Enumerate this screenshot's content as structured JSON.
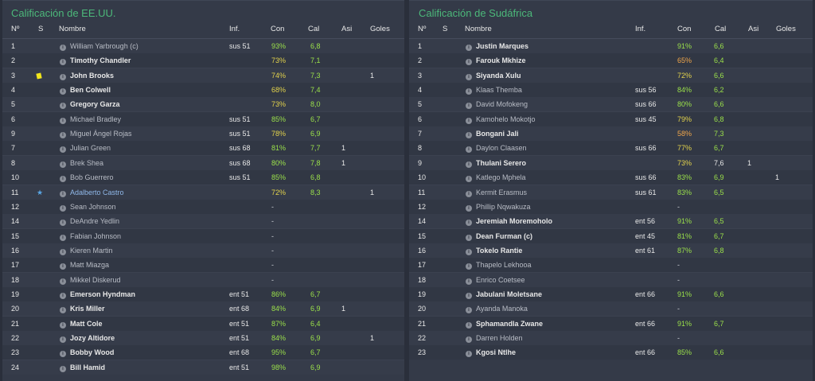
{
  "left": {
    "title": "Calificación de EE.UU.",
    "headers": {
      "num": "Nº",
      "s": "S",
      "name": "Nombre",
      "inf": "Inf.",
      "con": "Con",
      "cal": "Cal",
      "asi": "Asi",
      "goles": "Goles"
    },
    "rows": [
      {
        "num": "1",
        "s": "",
        "name": "William Yarbrough (c)",
        "bold": false,
        "inf": "sus 51",
        "con": "93%",
        "conc": "good",
        "cal": "6,8",
        "asi": "",
        "goles": ""
      },
      {
        "num": "2",
        "s": "",
        "name": "Timothy Chandler",
        "bold": true,
        "inf": "",
        "con": "73%",
        "conc": "mid",
        "cal": "7,1",
        "asi": "",
        "goles": ""
      },
      {
        "num": "3",
        "s": "yellow-card",
        "name": "John Brooks",
        "bold": true,
        "inf": "",
        "con": "74%",
        "conc": "mid",
        "cal": "7,3",
        "asi": "",
        "goles": "1"
      },
      {
        "num": "4",
        "s": "",
        "name": "Ben Colwell",
        "bold": true,
        "inf": "",
        "con": "68%",
        "conc": "mid",
        "cal": "7,4",
        "asi": "",
        "goles": ""
      },
      {
        "num": "5",
        "s": "",
        "name": "Gregory Garza",
        "bold": true,
        "inf": "",
        "con": "73%",
        "conc": "mid",
        "cal": "8,0",
        "asi": "",
        "goles": ""
      },
      {
        "num": "6",
        "s": "",
        "name": "Michael Bradley",
        "bold": false,
        "inf": "sus 51",
        "con": "85%",
        "conc": "good",
        "cal": "6,7",
        "asi": "",
        "goles": ""
      },
      {
        "num": "9",
        "s": "",
        "name": "Miguel Ángel Rojas",
        "bold": false,
        "inf": "sus 51",
        "con": "78%",
        "conc": "mid",
        "cal": "6,9",
        "asi": "",
        "goles": ""
      },
      {
        "num": "7",
        "s": "",
        "name": "Julian Green",
        "bold": false,
        "inf": "sus 68",
        "con": "81%",
        "conc": "good",
        "cal": "7,7",
        "asi": "1",
        "goles": ""
      },
      {
        "num": "8",
        "s": "",
        "name": "Brek Shea",
        "bold": false,
        "inf": "sus 68",
        "con": "80%",
        "conc": "good",
        "cal": "7,8",
        "asi": "1",
        "goles": ""
      },
      {
        "num": "10",
        "s": "",
        "name": "Bob Guerrero",
        "bold": false,
        "inf": "sus 51",
        "con": "85%",
        "conc": "good",
        "cal": "6,8",
        "asi": "",
        "goles": ""
      },
      {
        "num": "11",
        "s": "star",
        "name": "Adalberto Castro",
        "bold": false,
        "starname": true,
        "inf": "",
        "con": "72%",
        "conc": "mid",
        "cal": "8,3",
        "asi": "",
        "goles": "1"
      },
      {
        "num": "12",
        "s": "",
        "name": "Sean Johnson",
        "bold": false,
        "inf": "",
        "con": "-",
        "conc": "none",
        "cal": "",
        "asi": "",
        "goles": ""
      },
      {
        "num": "14",
        "s": "",
        "name": "DeAndre Yedlin",
        "bold": false,
        "inf": "",
        "con": "-",
        "conc": "none",
        "cal": "",
        "asi": "",
        "goles": ""
      },
      {
        "num": "15",
        "s": "",
        "name": "Fabian Johnson",
        "bold": false,
        "inf": "",
        "con": "-",
        "conc": "none",
        "cal": "",
        "asi": "",
        "goles": ""
      },
      {
        "num": "16",
        "s": "",
        "name": "Kieren Martin",
        "bold": false,
        "inf": "",
        "con": "-",
        "conc": "none",
        "cal": "",
        "asi": "",
        "goles": ""
      },
      {
        "num": "17",
        "s": "",
        "name": "Matt Miazga",
        "bold": false,
        "inf": "",
        "con": "-",
        "conc": "none",
        "cal": "",
        "asi": "",
        "goles": ""
      },
      {
        "num": "18",
        "s": "",
        "name": "Mikkel Diskerud",
        "bold": false,
        "inf": "",
        "con": "-",
        "conc": "none",
        "cal": "",
        "asi": "",
        "goles": ""
      },
      {
        "num": "19",
        "s": "",
        "name": "Emerson Hyndman",
        "bold": true,
        "inf": "ent 51",
        "con": "86%",
        "conc": "good",
        "cal": "6,7",
        "asi": "",
        "goles": ""
      },
      {
        "num": "20",
        "s": "",
        "name": "Kris Miller",
        "bold": true,
        "inf": "ent 68",
        "con": "84%",
        "conc": "good",
        "cal": "6,9",
        "asi": "1",
        "goles": ""
      },
      {
        "num": "21",
        "s": "",
        "name": "Matt Cole",
        "bold": true,
        "inf": "ent 51",
        "con": "87%",
        "conc": "good",
        "cal": "6,4",
        "asi": "",
        "goles": ""
      },
      {
        "num": "22",
        "s": "",
        "name": "Jozy Altidore",
        "bold": true,
        "inf": "ent 51",
        "con": "84%",
        "conc": "good",
        "cal": "6,9",
        "asi": "",
        "goles": "1"
      },
      {
        "num": "23",
        "s": "",
        "name": "Bobby Wood",
        "bold": true,
        "inf": "ent 68",
        "con": "95%",
        "conc": "good",
        "cal": "6,7",
        "asi": "",
        "goles": ""
      },
      {
        "num": "24",
        "s": "",
        "name": "Bill Hamid",
        "bold": true,
        "inf": "ent 51",
        "con": "98%",
        "conc": "good",
        "cal": "6,9",
        "asi": "",
        "goles": ""
      }
    ]
  },
  "right": {
    "title": "Calificación de Sudáfrica",
    "headers": {
      "num": "Nº",
      "s": "S",
      "name": "Nombre",
      "inf": "Inf.",
      "con": "Con",
      "cal": "Cal",
      "asi": "Asi",
      "goles": "Goles"
    },
    "rows": [
      {
        "num": "1",
        "s": "",
        "name": "Justin Marques",
        "bold": true,
        "inf": "",
        "con": "91%",
        "conc": "good",
        "cal": "6,6",
        "asi": "",
        "goles": ""
      },
      {
        "num": "2",
        "s": "",
        "name": "Farouk Mkhize",
        "bold": true,
        "inf": "",
        "con": "65%",
        "conc": "low",
        "cal": "6,4",
        "asi": "",
        "goles": ""
      },
      {
        "num": "3",
        "s": "",
        "name": "Siyanda Xulu",
        "bold": true,
        "inf": "",
        "con": "72%",
        "conc": "mid",
        "cal": "6,6",
        "asi": "",
        "goles": ""
      },
      {
        "num": "4",
        "s": "",
        "name": "Klaas Themba",
        "bold": false,
        "inf": "sus 56",
        "con": "84%",
        "conc": "good",
        "cal": "6,2",
        "asi": "",
        "goles": ""
      },
      {
        "num": "5",
        "s": "",
        "name": "David Mofokeng",
        "bold": false,
        "inf": "sus 66",
        "con": "80%",
        "conc": "good",
        "cal": "6,6",
        "asi": "",
        "goles": ""
      },
      {
        "num": "6",
        "s": "",
        "name": "Kamohelo Mokotjo",
        "bold": false,
        "inf": "sus 45",
        "con": "79%",
        "conc": "mid",
        "cal": "6,8",
        "asi": "",
        "goles": ""
      },
      {
        "num": "7",
        "s": "",
        "name": "Bongani Jali",
        "bold": true,
        "inf": "",
        "con": "58%",
        "conc": "low",
        "cal": "7,3",
        "asi": "",
        "goles": ""
      },
      {
        "num": "8",
        "s": "",
        "name": "Daylon Claasen",
        "bold": false,
        "inf": "sus 66",
        "con": "77%",
        "conc": "mid",
        "cal": "6,7",
        "asi": "",
        "goles": ""
      },
      {
        "num": "9",
        "s": "",
        "name": "Thulani Serero",
        "bold": true,
        "inf": "",
        "con": "73%",
        "conc": "mid",
        "cal": "7,6",
        "calw": true,
        "asi": "1",
        "goles": ""
      },
      {
        "num": "10",
        "s": "",
        "name": "Katlego Mphela",
        "bold": false,
        "inf": "sus 66",
        "con": "83%",
        "conc": "good",
        "cal": "6,9",
        "asi": "",
        "goles": "1"
      },
      {
        "num": "11",
        "s": "",
        "name": "Kermit Erasmus",
        "bold": false,
        "inf": "sus 61",
        "con": "83%",
        "conc": "good",
        "cal": "6,5",
        "asi": "",
        "goles": ""
      },
      {
        "num": "12",
        "s": "",
        "name": "Phillip Nqwakuza",
        "bold": false,
        "inf": "",
        "con": "-",
        "conc": "none",
        "cal": "",
        "asi": "",
        "goles": ""
      },
      {
        "num": "14",
        "s": "",
        "name": "Jeremiah Moremoholo",
        "bold": true,
        "inf": "ent 56",
        "con": "91%",
        "conc": "good",
        "cal": "6,5",
        "asi": "",
        "goles": ""
      },
      {
        "num": "15",
        "s": "",
        "name": "Dean Furman (c)",
        "bold": true,
        "inf": "ent 45",
        "con": "81%",
        "conc": "good",
        "cal": "6,7",
        "asi": "",
        "goles": ""
      },
      {
        "num": "16",
        "s": "",
        "name": "Tokelo Rantie",
        "bold": true,
        "inf": "ent 61",
        "con": "87%",
        "conc": "good",
        "cal": "6,8",
        "asi": "",
        "goles": ""
      },
      {
        "num": "17",
        "s": "",
        "name": "Thapelo Lekhooa",
        "bold": false,
        "inf": "",
        "con": "-",
        "conc": "none",
        "cal": "",
        "asi": "",
        "goles": ""
      },
      {
        "num": "18",
        "s": "",
        "name": "Enrico Coetsee",
        "bold": false,
        "inf": "",
        "con": "-",
        "conc": "none",
        "cal": "",
        "asi": "",
        "goles": ""
      },
      {
        "num": "19",
        "s": "",
        "name": "Jabulani Moletsane",
        "bold": true,
        "inf": "ent 66",
        "con": "91%",
        "conc": "good",
        "cal": "6,6",
        "asi": "",
        "goles": ""
      },
      {
        "num": "20",
        "s": "",
        "name": "Ayanda Manoka",
        "bold": false,
        "inf": "",
        "con": "-",
        "conc": "none",
        "cal": "",
        "asi": "",
        "goles": ""
      },
      {
        "num": "21",
        "s": "",
        "name": "Sphamandla Zwane",
        "bold": true,
        "inf": "ent 66",
        "con": "91%",
        "conc": "good",
        "cal": "6,7",
        "asi": "",
        "goles": ""
      },
      {
        "num": "22",
        "s": "",
        "name": "Darren Holden",
        "bold": false,
        "inf": "",
        "con": "-",
        "conc": "none",
        "cal": "",
        "asi": "",
        "goles": ""
      },
      {
        "num": "23",
        "s": "",
        "name": "Kgosi Ntlhe",
        "bold": true,
        "inf": "ent 66",
        "con": "85%",
        "conc": "good",
        "cal": "6,6",
        "asi": "",
        "goles": ""
      }
    ]
  }
}
